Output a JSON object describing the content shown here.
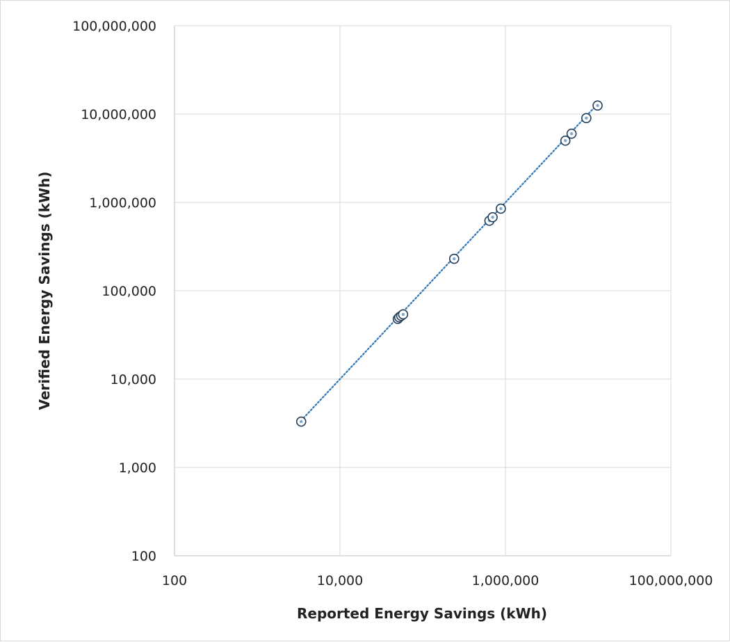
{
  "chart_data": {
    "type": "scatter",
    "xlabel": "Reported Energy Savings (kWh)",
    "ylabel": "Verified Energy Savings (kWh)",
    "xscale": "log",
    "yscale": "log",
    "xlim": [
      100,
      100000000
    ],
    "ylim": [
      100,
      100000000
    ],
    "x_ticks": [
      "100",
      "10,000",
      "1,000,000",
      "100,000,000"
    ],
    "y_ticks": [
      "100",
      "1,000",
      "10,000",
      "100,000",
      "1,000,000",
      "10,000,000",
      "100,000,000"
    ],
    "grid": true,
    "legend": "none",
    "marker_color": "#1f3b57",
    "trendline": {
      "style": "dotted",
      "color": "#2e75b6",
      "from": [
        3400,
        3400
      ],
      "to": [
        13000000,
        13000000
      ]
    },
    "series": [
      {
        "x": [
          3400,
          50000,
          52000,
          55000,
          58000,
          240000,
          640000,
          700000,
          880000,
          5300000,
          6300000,
          9500000,
          13000000
        ],
        "y": [
          3300,
          48000,
          50000,
          52000,
          54000,
          230000,
          620000,
          680000,
          850000,
          5000000,
          6000000,
          9000000,
          12500000
        ]
      }
    ]
  }
}
